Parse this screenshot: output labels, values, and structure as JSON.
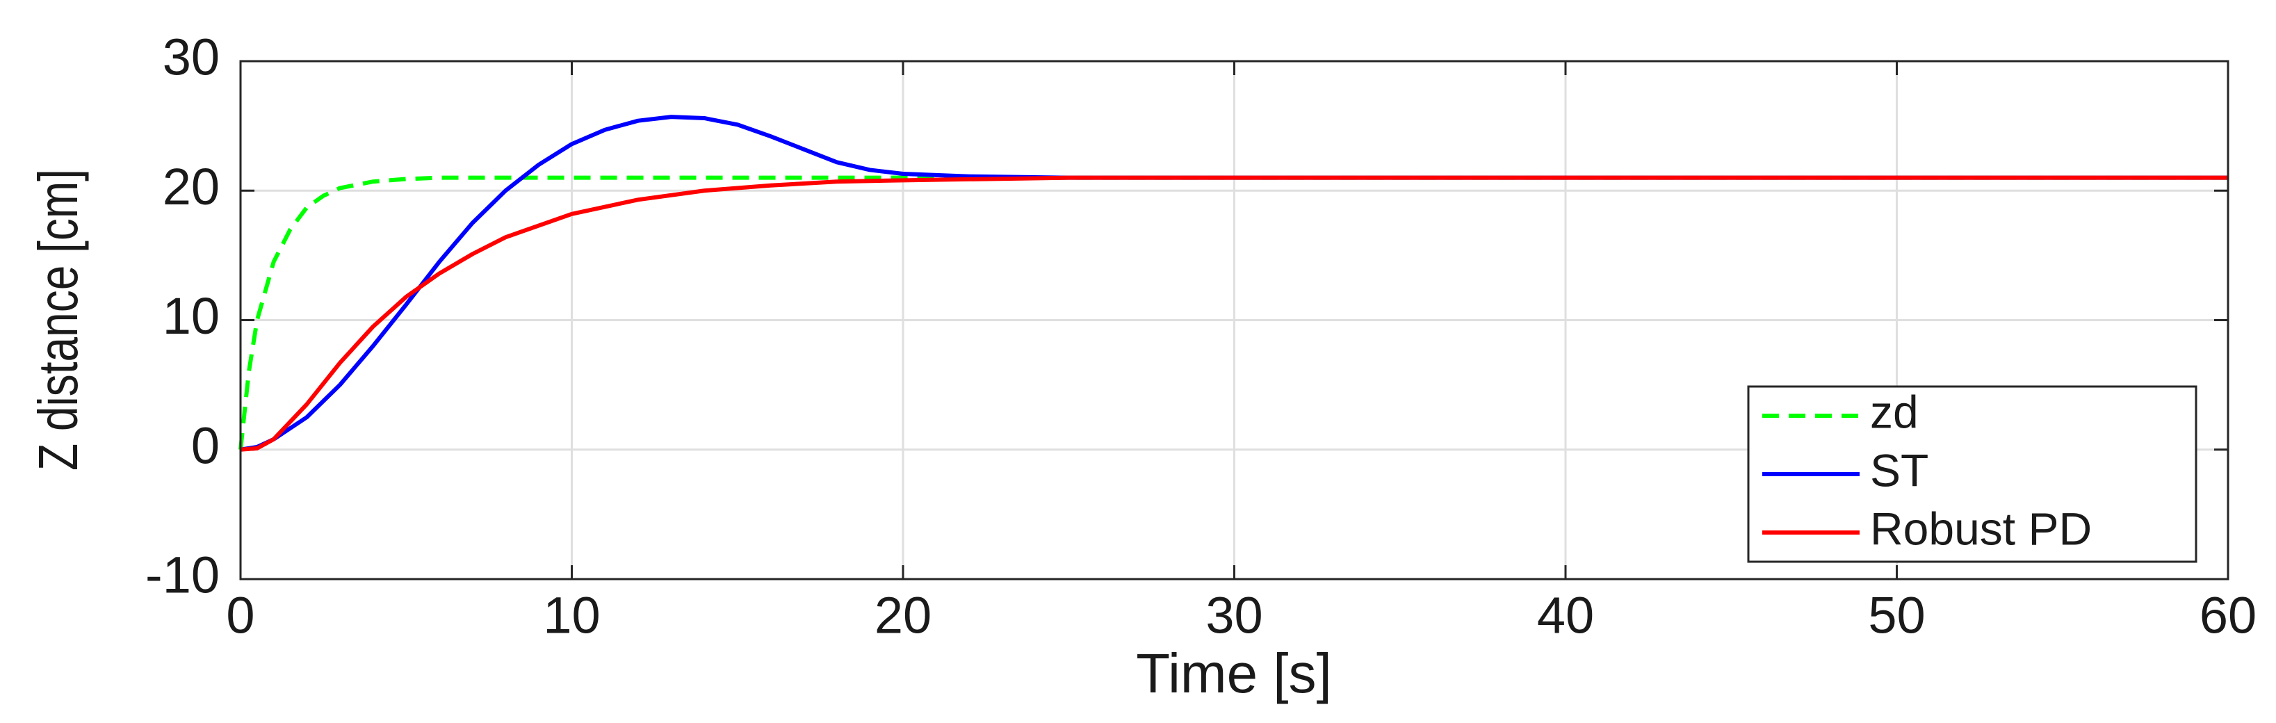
{
  "chart_data": {
    "type": "line",
    "xlabel": "Time [s]",
    "ylabel": "Z distance [cm]",
    "xlim": [
      0,
      60
    ],
    "xticks": [
      0,
      10,
      20,
      30,
      40,
      50,
      60
    ],
    "ylim": [
      -10,
      30
    ],
    "yticks": [
      -10,
      0,
      10,
      20,
      30
    ],
    "grid": true,
    "legend": "lower right",
    "series": [
      {
        "name": "zd",
        "color": "#00ff00",
        "dash": true,
        "x": [
          0,
          0.25,
          0.5,
          1,
          1.5,
          2,
          2.5,
          3,
          4,
          5,
          6,
          8,
          10,
          60
        ],
        "values": [
          0,
          6,
          10,
          14.5,
          17,
          18.7,
          19.6,
          20.2,
          20.7,
          20.9,
          21,
          21,
          21,
          21
        ]
      },
      {
        "name": "ST",
        "color": "#0000ff",
        "dash": false,
        "x": [
          0,
          0.5,
          1,
          2,
          3,
          4,
          5,
          6,
          7,
          8,
          9,
          10,
          11,
          12,
          13,
          14,
          15,
          16,
          17,
          18,
          19,
          20,
          22,
          25,
          60
        ],
        "values": [
          0,
          0.2,
          0.8,
          2.5,
          5,
          8,
          11.2,
          14.5,
          17.5,
          20,
          22,
          23.6,
          24.7,
          25.4,
          25.7,
          25.6,
          25.1,
          24.2,
          23.2,
          22.2,
          21.6,
          21.3,
          21.1,
          21,
          21
        ]
      },
      {
        "name": "Robust PD",
        "color": "#ff0000",
        "dash": false,
        "x": [
          0,
          0.5,
          1,
          2,
          3,
          4,
          5,
          6,
          7,
          8,
          10,
          12,
          14,
          16,
          18,
          20,
          25,
          60
        ],
        "values": [
          0,
          0.1,
          0.8,
          3.5,
          6.7,
          9.5,
          11.8,
          13.6,
          15.1,
          16.4,
          18.2,
          19.3,
          20,
          20.4,
          20.7,
          20.8,
          21,
          21
        ]
      }
    ]
  }
}
